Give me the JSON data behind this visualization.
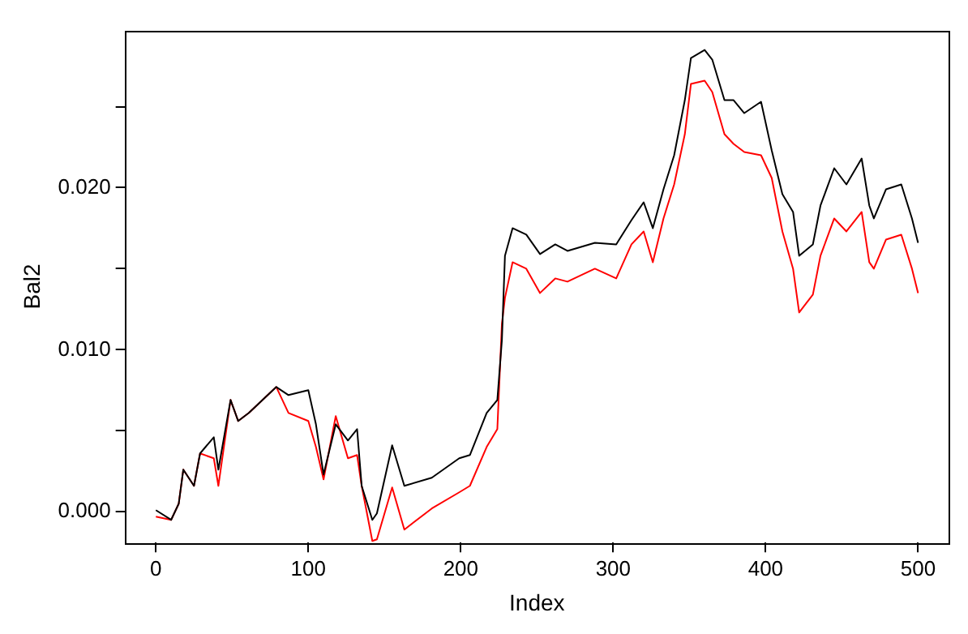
{
  "chart_data": {
    "type": "line",
    "xlabel": "Index",
    "ylabel": "Bal2",
    "xlim": [
      -20,
      520
    ],
    "xticks": [
      0,
      100,
      200,
      300,
      400,
      500
    ],
    "ylim": [
      -0.0019,
      0.0297
    ],
    "yticks": [
      {
        "value": 0,
        "label": "0.000"
      },
      {
        "value": 0.005,
        "label": null
      },
      {
        "value": 0.01,
        "label": "0.010"
      },
      {
        "value": 0.015,
        "label": null
      },
      {
        "value": 0.02,
        "label": "0.020"
      },
      {
        "value": 0.025,
        "label": null
      }
    ],
    "grid": false,
    "legend": false,
    "marker": "none",
    "line_style": "solid",
    "series": [
      {
        "color": "#000000",
        "x": [
          0,
          10,
          15,
          18,
          25,
          29,
          38,
          41,
          49,
          54,
          61,
          70,
          79,
          87,
          100,
          105,
          110,
          118,
          126,
          132,
          135,
          142,
          145,
          155,
          163,
          181,
          199,
          206,
          217,
          224,
          227,
          229,
          234,
          243,
          252,
          262,
          270,
          288,
          302,
          312,
          320,
          326,
          333,
          340,
          347,
          351,
          360,
          365,
          373,
          379,
          386,
          397,
          404,
          411,
          418,
          422,
          431,
          436,
          445,
          453,
          463,
          468,
          471,
          479,
          489,
          496,
          500
        ],
        "values": [
          0.0001,
          -0.0005,
          0.0005,
          0.0026,
          0.0016,
          0.0036,
          0.0046,
          0.0026,
          0.0069,
          0.0056,
          0.0061,
          0.0069,
          0.0077,
          0.0072,
          0.0075,
          0.0054,
          0.0023,
          0.0054,
          0.0044,
          0.0051,
          0.0016,
          -0.0005,
          -0.0001,
          0.0041,
          0.0016,
          0.0021,
          0.0033,
          0.0035,
          0.0061,
          0.0069,
          0.0106,
          0.0158,
          0.0175,
          0.0171,
          0.0159,
          0.0165,
          0.0161,
          0.0166,
          0.0165,
          0.018,
          0.0191,
          0.0175,
          0.0199,
          0.022,
          0.0254,
          0.028,
          0.0285,
          0.0279,
          0.0254,
          0.0254,
          0.0246,
          0.0253,
          0.0223,
          0.0196,
          0.0185,
          0.0158,
          0.0165,
          0.0189,
          0.0212,
          0.0202,
          0.0218,
          0.0189,
          0.0181,
          0.0199,
          0.0202,
          0.0181,
          0.0166
        ]
      },
      {
        "color": "#ff0000",
        "x": [
          0,
          10,
          15,
          18,
          25,
          29,
          38,
          41,
          49,
          54,
          61,
          70,
          79,
          87,
          100,
          105,
          110,
          118,
          126,
          132,
          135,
          142,
          145,
          155,
          163,
          181,
          199,
          206,
          217,
          224,
          227,
          229,
          234,
          243,
          252,
          262,
          270,
          288,
          302,
          312,
          320,
          326,
          333,
          340,
          347,
          351,
          360,
          365,
          373,
          379,
          386,
          397,
          404,
          411,
          418,
          422,
          431,
          436,
          445,
          453,
          463,
          468,
          471,
          479,
          489,
          496,
          500
        ],
        "values": [
          -0.0003,
          -0.0005,
          0.0005,
          0.0026,
          0.0016,
          0.0036,
          0.0033,
          0.0016,
          0.0069,
          0.0056,
          0.0061,
          0.0069,
          0.0077,
          0.0061,
          0.0056,
          0.004,
          0.002,
          0.0059,
          0.0033,
          0.0035,
          0.0016,
          -0.0018,
          -0.0017,
          0.0015,
          -0.0011,
          0.0002,
          0.0012,
          0.0016,
          0.004,
          0.0051,
          0.0116,
          0.0132,
          0.0154,
          0.015,
          0.0135,
          0.0144,
          0.0142,
          0.015,
          0.0144,
          0.0165,
          0.0173,
          0.0154,
          0.0181,
          0.0202,
          0.0233,
          0.0264,
          0.0266,
          0.0259,
          0.0233,
          0.0227,
          0.0222,
          0.022,
          0.0206,
          0.0173,
          0.015,
          0.0123,
          0.0134,
          0.0158,
          0.0181,
          0.0173,
          0.0185,
          0.0154,
          0.015,
          0.0168,
          0.0171,
          0.015,
          0.0135
        ]
      }
    ]
  }
}
